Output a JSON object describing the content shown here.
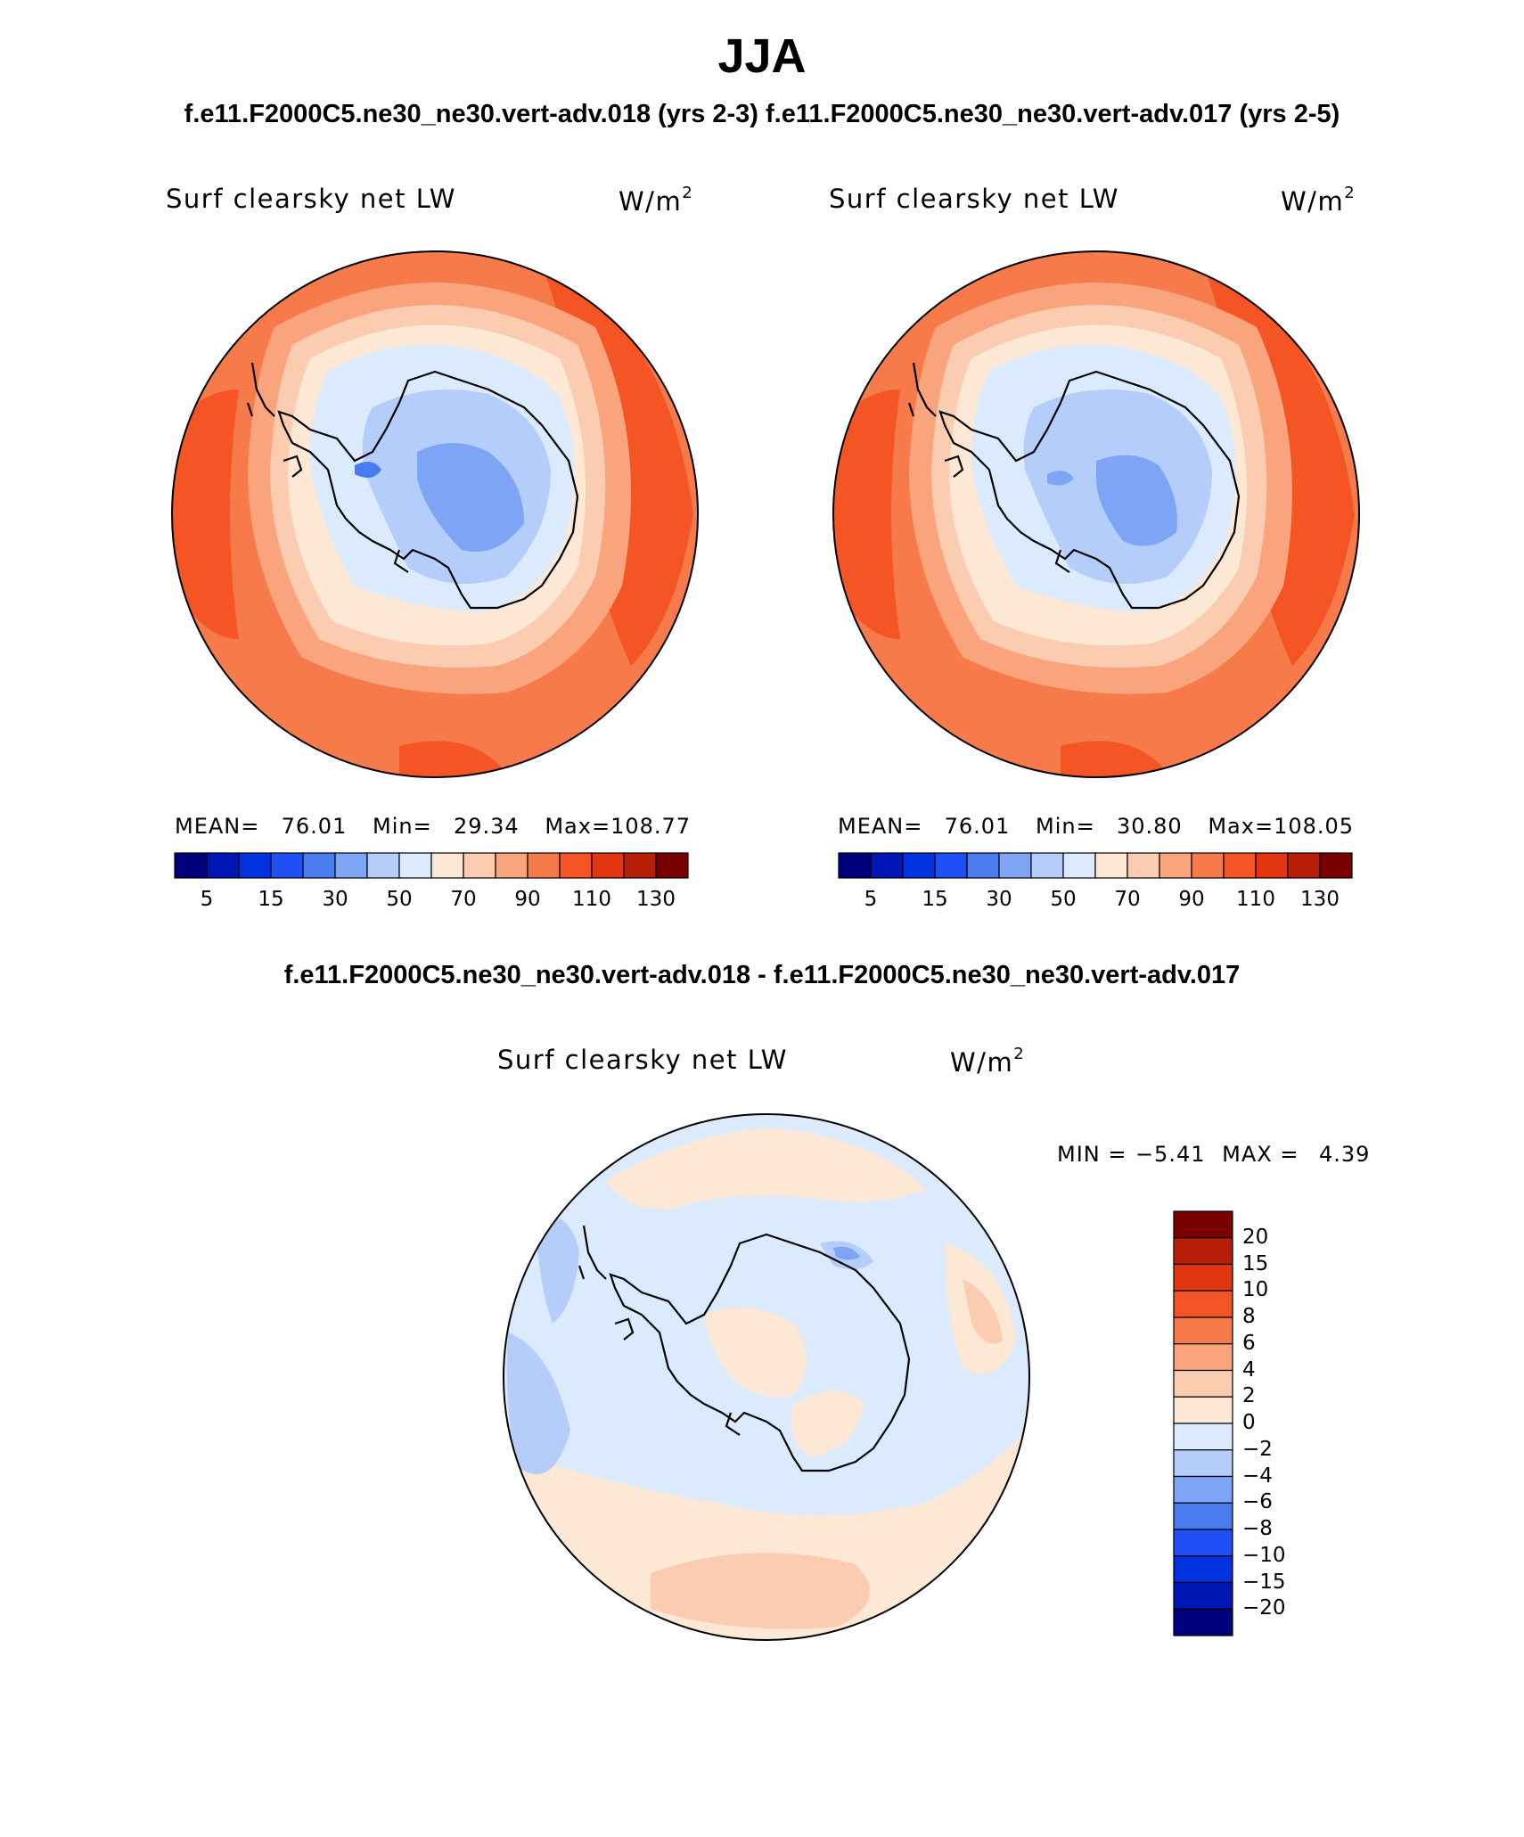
{
  "season_title": "JJA",
  "case_title": "f.e11.F2000C5.ne30_ne30.vert-adv.018 (yrs 2-3)  f.e11.F2000C5.ne30_ne30.vert-adv.017 (yrs 2-5)",
  "diff_title": "f.e11.F2000C5.ne30_ne30.vert-adv.018 - f.e11.F2000C5.ne30_ne30.vert-adv.017",
  "colors": {
    "abs_scale": [
      "#00007f",
      "#0016b4",
      "#0032e0",
      "#2050f5",
      "#4a7cf0",
      "#7da4f5",
      "#b4cdfa",
      "#dceafd",
      "#fde8d6",
      "#fcccb0",
      "#f9a47c",
      "#f77b4a",
      "#f55525",
      "#e33510",
      "#b81f08",
      "#7a0000"
    ],
    "diff_scale": [
      "#00007f",
      "#0016b4",
      "#0032e0",
      "#2050f5",
      "#4a7cf0",
      "#7da4f5",
      "#b4cdfa",
      "#dceafd",
      "#fde8d6",
      "#fcccb0",
      "#f9a47c",
      "#f77b4a",
      "#f55525",
      "#e33510",
      "#b81f08",
      "#7a0000"
    ]
  },
  "panels": [
    {
      "variable": "Surf clearsky net LW",
      "units": "W/m",
      "units_exp": "2",
      "mean_label": "MEAN=",
      "mean": "76.01",
      "min_label": "Min=",
      "min": "29.34",
      "max_label": "Max=",
      "max": "108.77"
    },
    {
      "variable": "Surf clearsky net LW",
      "units": "W/m",
      "units_exp": "2",
      "mean_label": "MEAN=",
      "mean": "76.01",
      "min_label": "Min=",
      "min": "30.80",
      "max_label": "Max=",
      "max": "108.05"
    }
  ],
  "diff_panel": {
    "variable": "Surf clearsky net LW",
    "units": "W/m",
    "units_exp": "2",
    "min_label": "MIN =",
    "min": "−5.41",
    "max_label": "MAX =",
    "max": "4.39"
  },
  "abs_colorbar_ticks": [
    "5",
    "15",
    "30",
    "50",
    "70",
    "90",
    "110",
    "130"
  ],
  "diff_colorbar_ticks": [
    "20",
    "15",
    "10",
    "8",
    "6",
    "4",
    "2",
    "0",
    "−2",
    "−4",
    "−6",
    "−8",
    "−10",
    "−15",
    "−20"
  ]
}
